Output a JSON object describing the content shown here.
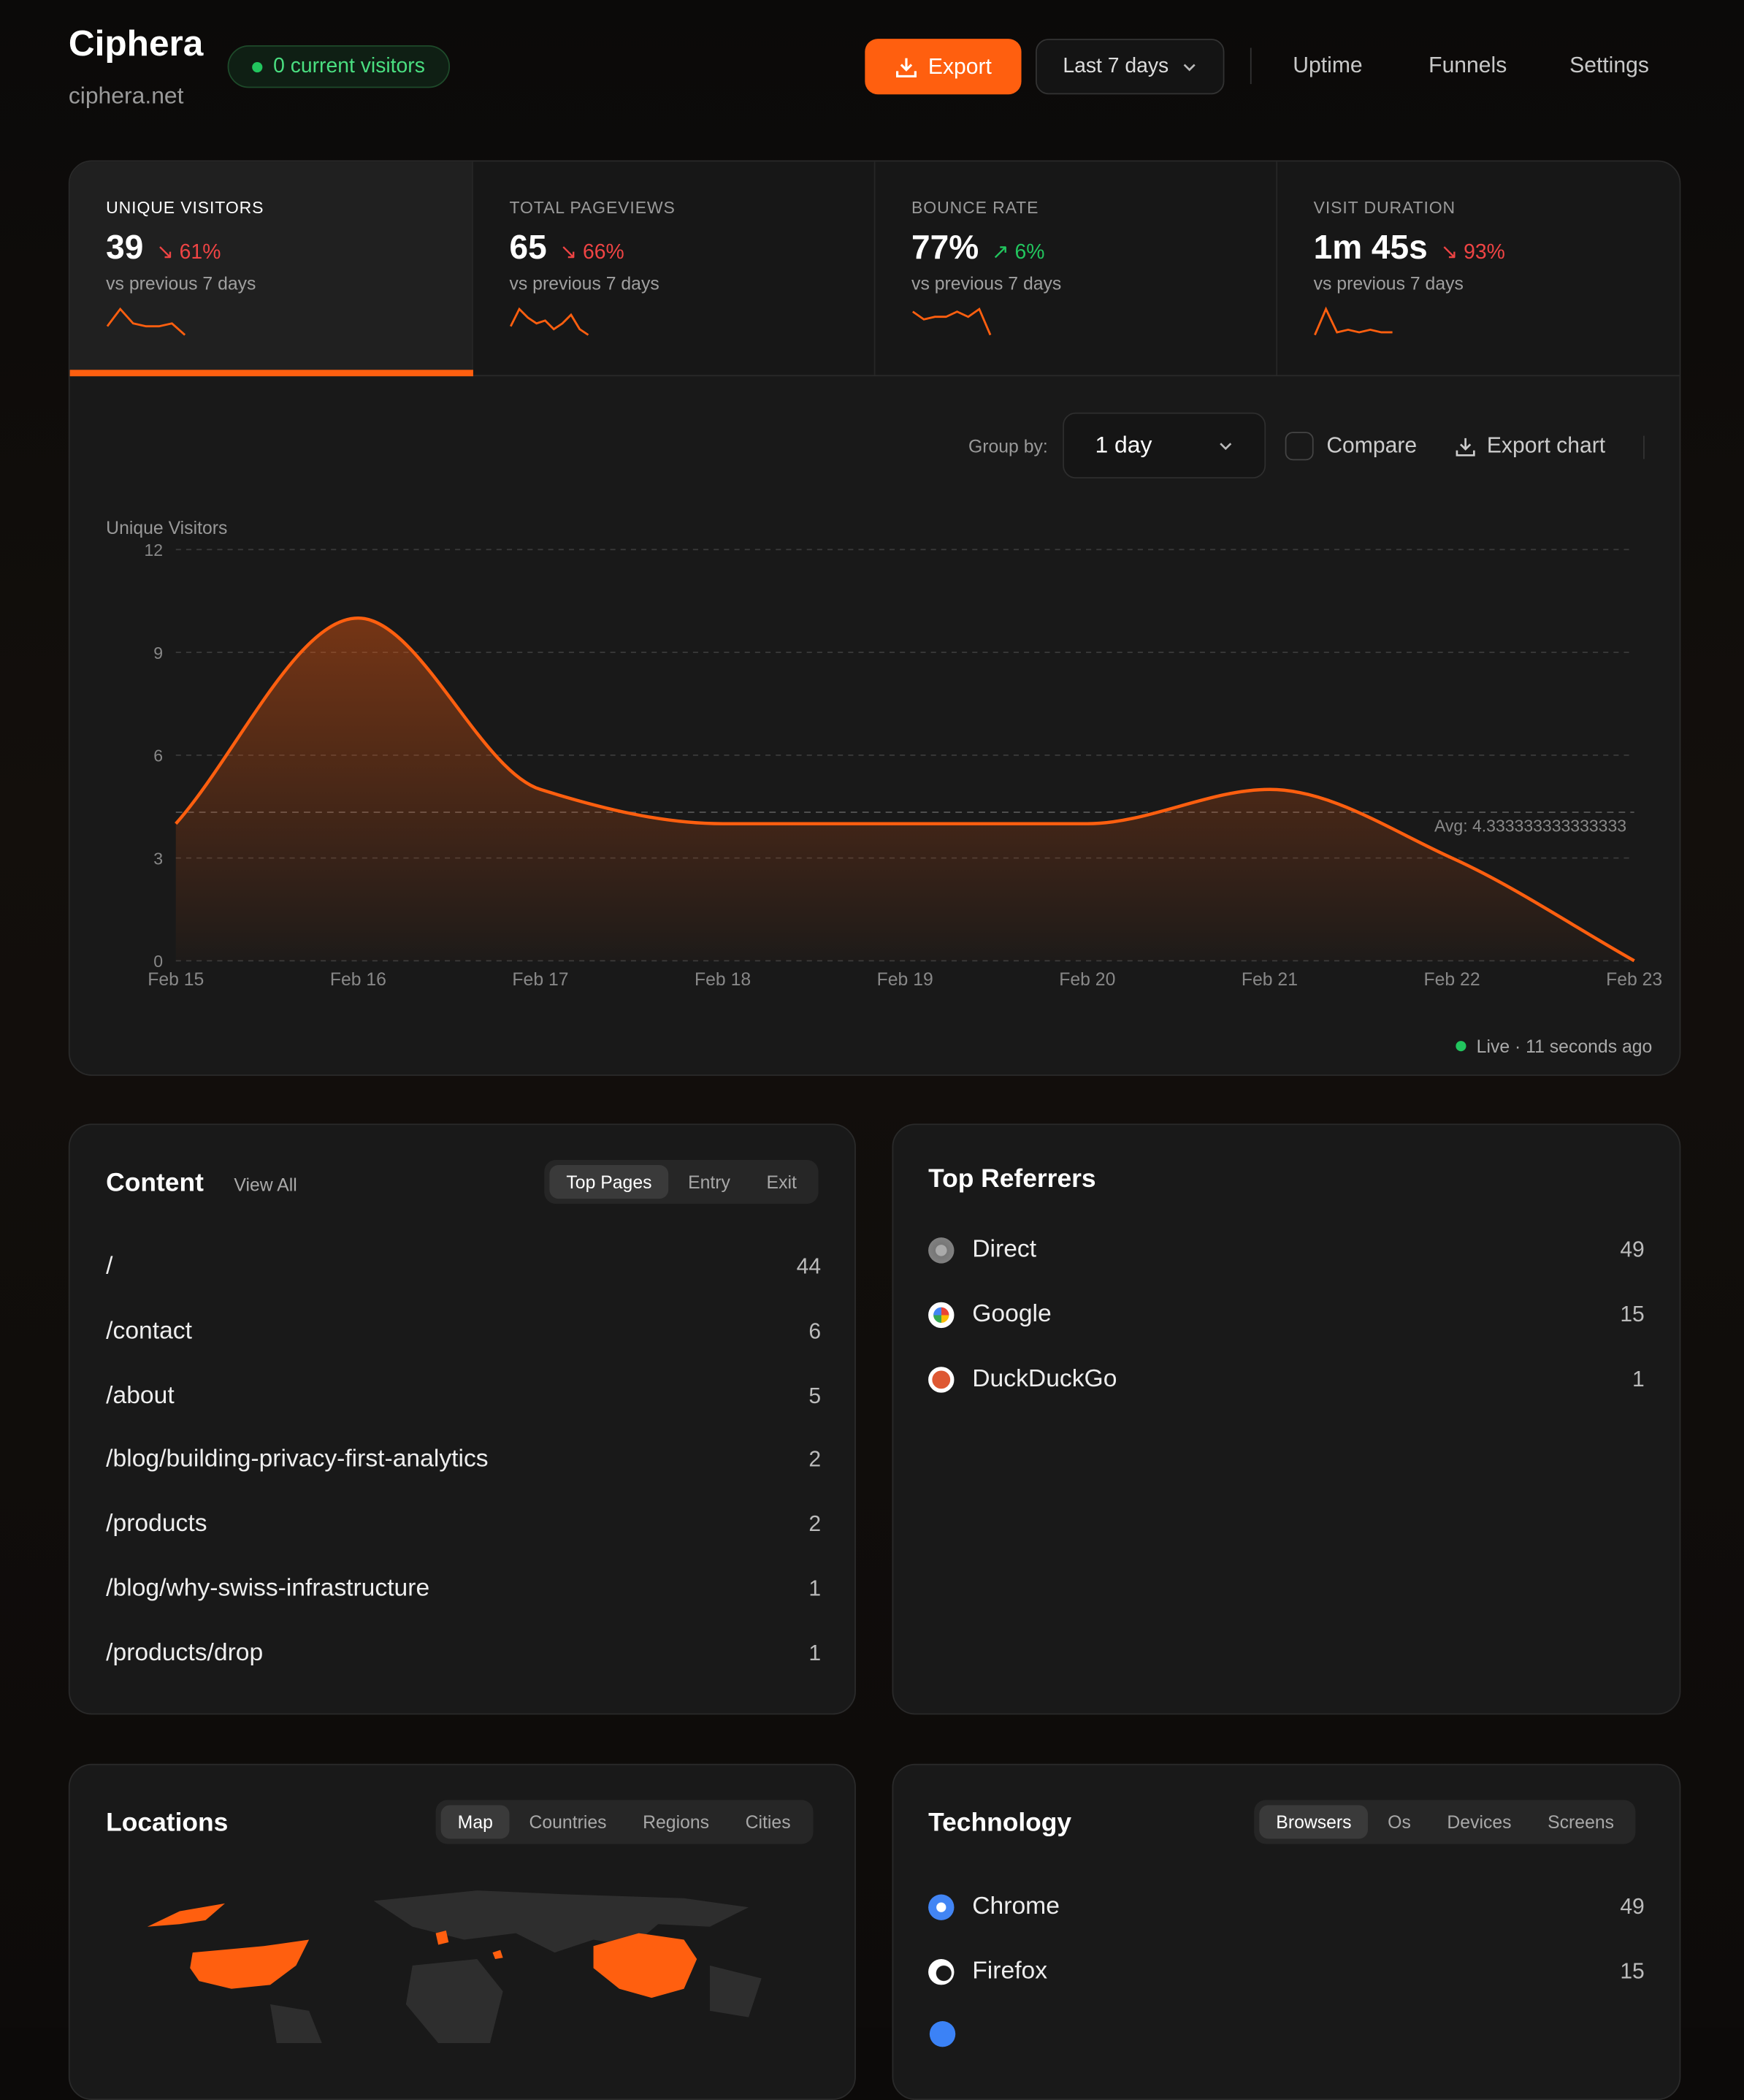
{
  "header": {
    "title": "Ciphera",
    "domain": "ciphera.net",
    "visitors_badge": "0 current visitors",
    "export_label": "Export",
    "range_label": "Last 7 days",
    "nav": [
      "Uptime",
      "Funnels",
      "Settings"
    ]
  },
  "stats": [
    {
      "label": "UNIQUE VISITORS",
      "value": "39",
      "change": "61%",
      "direction": "down",
      "sub": "vs previous 7 days",
      "spark": [
        3,
        9,
        4,
        3,
        3,
        4,
        0
      ],
      "active": true
    },
    {
      "label": "TOTAL PAGEVIEWS",
      "value": "65",
      "change": "66%",
      "direction": "down",
      "sub": "vs previous 7 days",
      "spark": [
        3,
        9,
        6,
        4,
        5,
        2,
        4,
        7,
        2,
        0
      ]
    },
    {
      "label": "BOUNCE RATE",
      "value": "77%",
      "change": "6%",
      "direction": "up",
      "sub": "vs previous 7 days",
      "spark": [
        9,
        6,
        7,
        7,
        9,
        7,
        10,
        0
      ]
    },
    {
      "label": "VISIT DURATION",
      "value": "1m 45s",
      "change": "93%",
      "direction": "down",
      "sub": "vs previous 7 days",
      "spark": [
        0,
        10,
        1,
        2,
        1,
        2,
        1,
        1
      ]
    }
  ],
  "chart_controls": {
    "group_by_label": "Group by:",
    "group_by_value": "1 day",
    "compare_label": "Compare",
    "export_chart_label": "Export chart"
  },
  "chart_data": {
    "type": "area",
    "ylabel": "Unique Visitors",
    "categories": [
      "Feb 15",
      "Feb 16",
      "Feb 17",
      "Feb 18",
      "Feb 19",
      "Feb 20",
      "Feb 21",
      "Feb 22",
      "Feb 23"
    ],
    "values": [
      4,
      10,
      5,
      4,
      4,
      4,
      5,
      3,
      0
    ],
    "ylim": [
      0,
      12
    ],
    "yticks": [
      "0",
      "3",
      "6",
      "9",
      "12"
    ],
    "avg_label": "Avg: 4.333333333333333",
    "avg": 4.333333333333333,
    "grid": true,
    "color": "#ff5f0f"
  },
  "live": "Live · 11 seconds ago",
  "content": {
    "title": "Content",
    "view_all": "View All",
    "tabs": [
      "Top Pages",
      "Entry",
      "Exit"
    ],
    "rows": [
      {
        "path": "/",
        "count": "44"
      },
      {
        "path": "/contact",
        "count": "6"
      },
      {
        "path": "/about",
        "count": "5"
      },
      {
        "path": "/blog/building-privacy-first-analytics",
        "count": "2"
      },
      {
        "path": "/products",
        "count": "2"
      },
      {
        "path": "/blog/why-swiss-infrastructure",
        "count": "1"
      },
      {
        "path": "/products/drop",
        "count": "1"
      }
    ]
  },
  "referrers": {
    "title": "Top Referrers",
    "rows": [
      {
        "name": "Direct",
        "count": "49",
        "icon": "globe-icon"
      },
      {
        "name": "Google",
        "count": "15",
        "icon": "google-icon"
      },
      {
        "name": "DuckDuckGo",
        "count": "1",
        "icon": "duckduckgo-icon"
      }
    ]
  },
  "locations": {
    "title": "Locations",
    "tabs": [
      "Map",
      "Countries",
      "Regions",
      "Cities"
    ]
  },
  "technology": {
    "title": "Technology",
    "tabs": [
      "Browsers",
      "Os",
      "Devices",
      "Screens"
    ],
    "rows": [
      {
        "name": "Chrome",
        "count": "49",
        "icon": "chrome-icon"
      },
      {
        "name": "Firefox",
        "count": "15",
        "icon": "firefox-icon"
      }
    ]
  }
}
